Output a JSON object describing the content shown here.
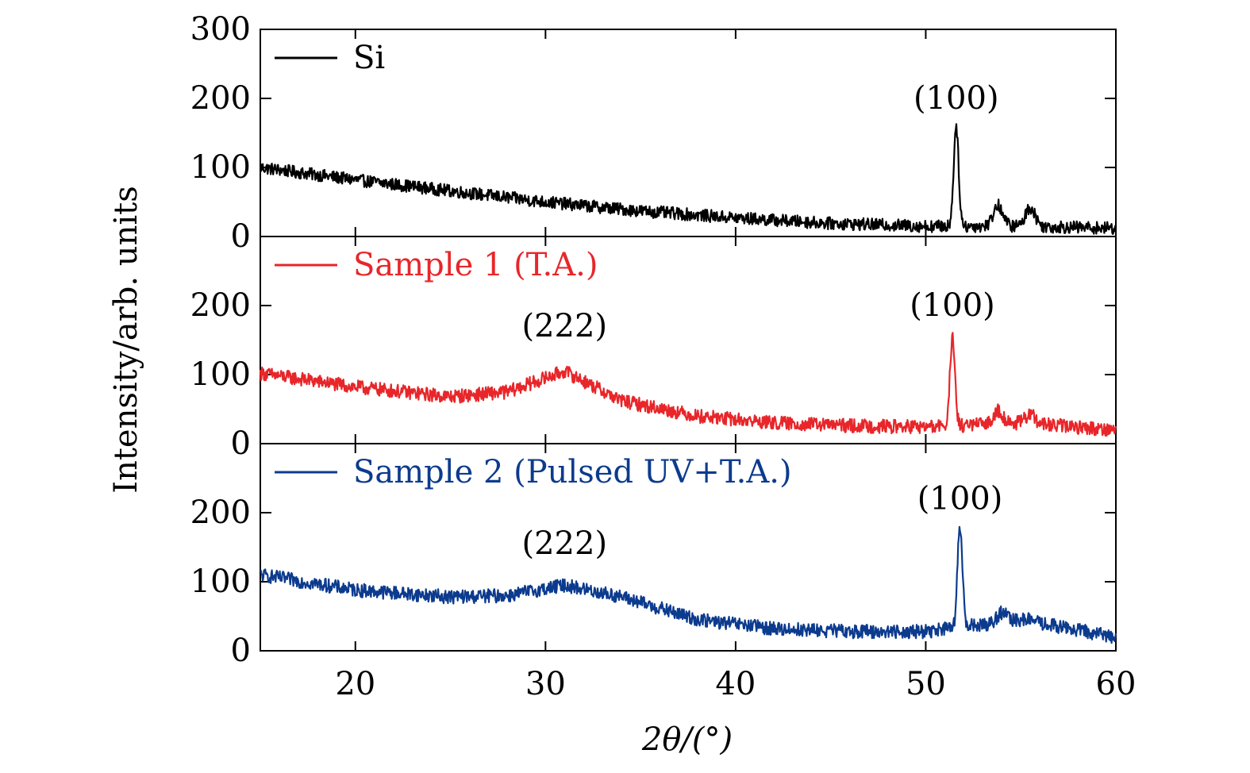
{
  "chart_data": {
    "type": "line",
    "layout": "stacked-panels",
    "xlabel": "2θ/(°)",
    "ylabel": "Intensity/arb. units",
    "xlim": [
      15,
      60
    ],
    "x_ticks": [
      20,
      30,
      40,
      50,
      60
    ],
    "panels": [
      {
        "name": "Si",
        "color": "#000000",
        "legend": "Si",
        "ylim": [
          0,
          300
        ],
        "y_ticks": [
          0,
          100,
          200,
          300
        ],
        "peaks": [
          {
            "x": 51.6,
            "y": 160,
            "label": "(100)"
          },
          {
            "x": 53.8,
            "y": 45,
            "label": ""
          },
          {
            "x": 55.5,
            "y": 42,
            "label": ""
          }
        ],
        "background": {
          "x": [
            15,
            20,
            25,
            30,
            35,
            40,
            45,
            50,
            55,
            60
          ],
          "y": [
            100,
            82,
            66,
            50,
            37,
            27,
            19,
            15,
            15,
            12
          ]
        },
        "noise": 9,
        "annotations": [
          {
            "text": "(100)",
            "x": 51.6,
            "y": 185
          }
        ]
      },
      {
        "name": "Sample 1",
        "color": "#e8262a",
        "legend": "Sample 1 (T.A.)",
        "ylim": [
          0,
          300
        ],
        "y_ticks": [
          0,
          100,
          200
        ],
        "peaks": [
          {
            "x": 31.0,
            "y": 110,
            "label": "(222)"
          },
          {
            "x": 51.4,
            "y": 152,
            "label": "(100)"
          },
          {
            "x": 53.8,
            "y": 48,
            "label": ""
          },
          {
            "x": 55.5,
            "y": 42,
            "label": ""
          }
        ],
        "background": {
          "x": [
            15,
            20,
            25,
            28,
            31,
            34,
            38,
            42,
            46,
            50,
            55,
            60
          ],
          "y": [
            102,
            82,
            68,
            75,
            105,
            62,
            40,
            30,
            26,
            24,
            30,
            20
          ]
        },
        "noise": 10,
        "annotations": [
          {
            "text": "(222)",
            "x": 31.0,
            "y": 155
          },
          {
            "text": "(100)",
            "x": 51.4,
            "y": 185
          }
        ]
      },
      {
        "name": "Sample 2",
        "color": "#0c3b8e",
        "legend": "Sample 2 (Pulsed UV+T.A.)",
        "ylim": [
          0,
          300
        ],
        "y_ticks": [
          0,
          100,
          200
        ],
        "peaks": [
          {
            "x": 31.5,
            "y": 100,
            "label": "(222)"
          },
          {
            "x": 51.8,
            "y": 178,
            "label": "(100)"
          },
          {
            "x": 54.0,
            "y": 55,
            "label": ""
          },
          {
            "x": 55.5,
            "y": 45,
            "label": ""
          }
        ],
        "background": {
          "x": [
            15,
            20,
            25,
            28,
            31,
            34,
            38,
            42,
            46,
            50,
            55,
            60
          ],
          "y": [
            110,
            88,
            78,
            80,
            95,
            78,
            45,
            32,
            28,
            28,
            45,
            20
          ]
        },
        "noise": 10,
        "annotations": [
          {
            "text": "(222)",
            "x": 31.0,
            "y": 140
          },
          {
            "text": "(100)",
            "x": 51.8,
            "y": 205
          }
        ]
      }
    ]
  }
}
